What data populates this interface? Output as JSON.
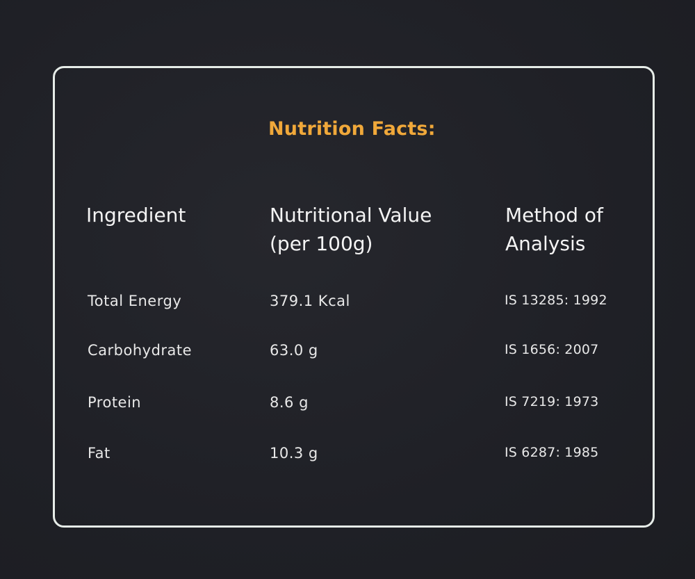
{
  "title": "Nutrition Facts:",
  "headers": {
    "ingredient": "Ingredient",
    "value_line1": "Nutritional Value",
    "value_line2": "(per 100g)",
    "method_line1": "Method of",
    "method_line2": "Analysis"
  },
  "rows": [
    {
      "ingredient": "Total Energy",
      "value": "379.1 Kcal",
      "method": "IS 13285: 1992"
    },
    {
      "ingredient": "Carbohydrate",
      "value": "63.0 g",
      "method": "IS 1656: 2007"
    },
    {
      "ingredient": "Protein",
      "value": "8.6 g",
      "method": "IS 7219: 1973"
    },
    {
      "ingredient": "Fat",
      "value": "10.3 g",
      "method": "IS 6287: 1985"
    }
  ],
  "colors": {
    "background": "#1f2026",
    "border": "#e6ece8",
    "title": "#f0a83a",
    "text": "#f2f2f2"
  }
}
